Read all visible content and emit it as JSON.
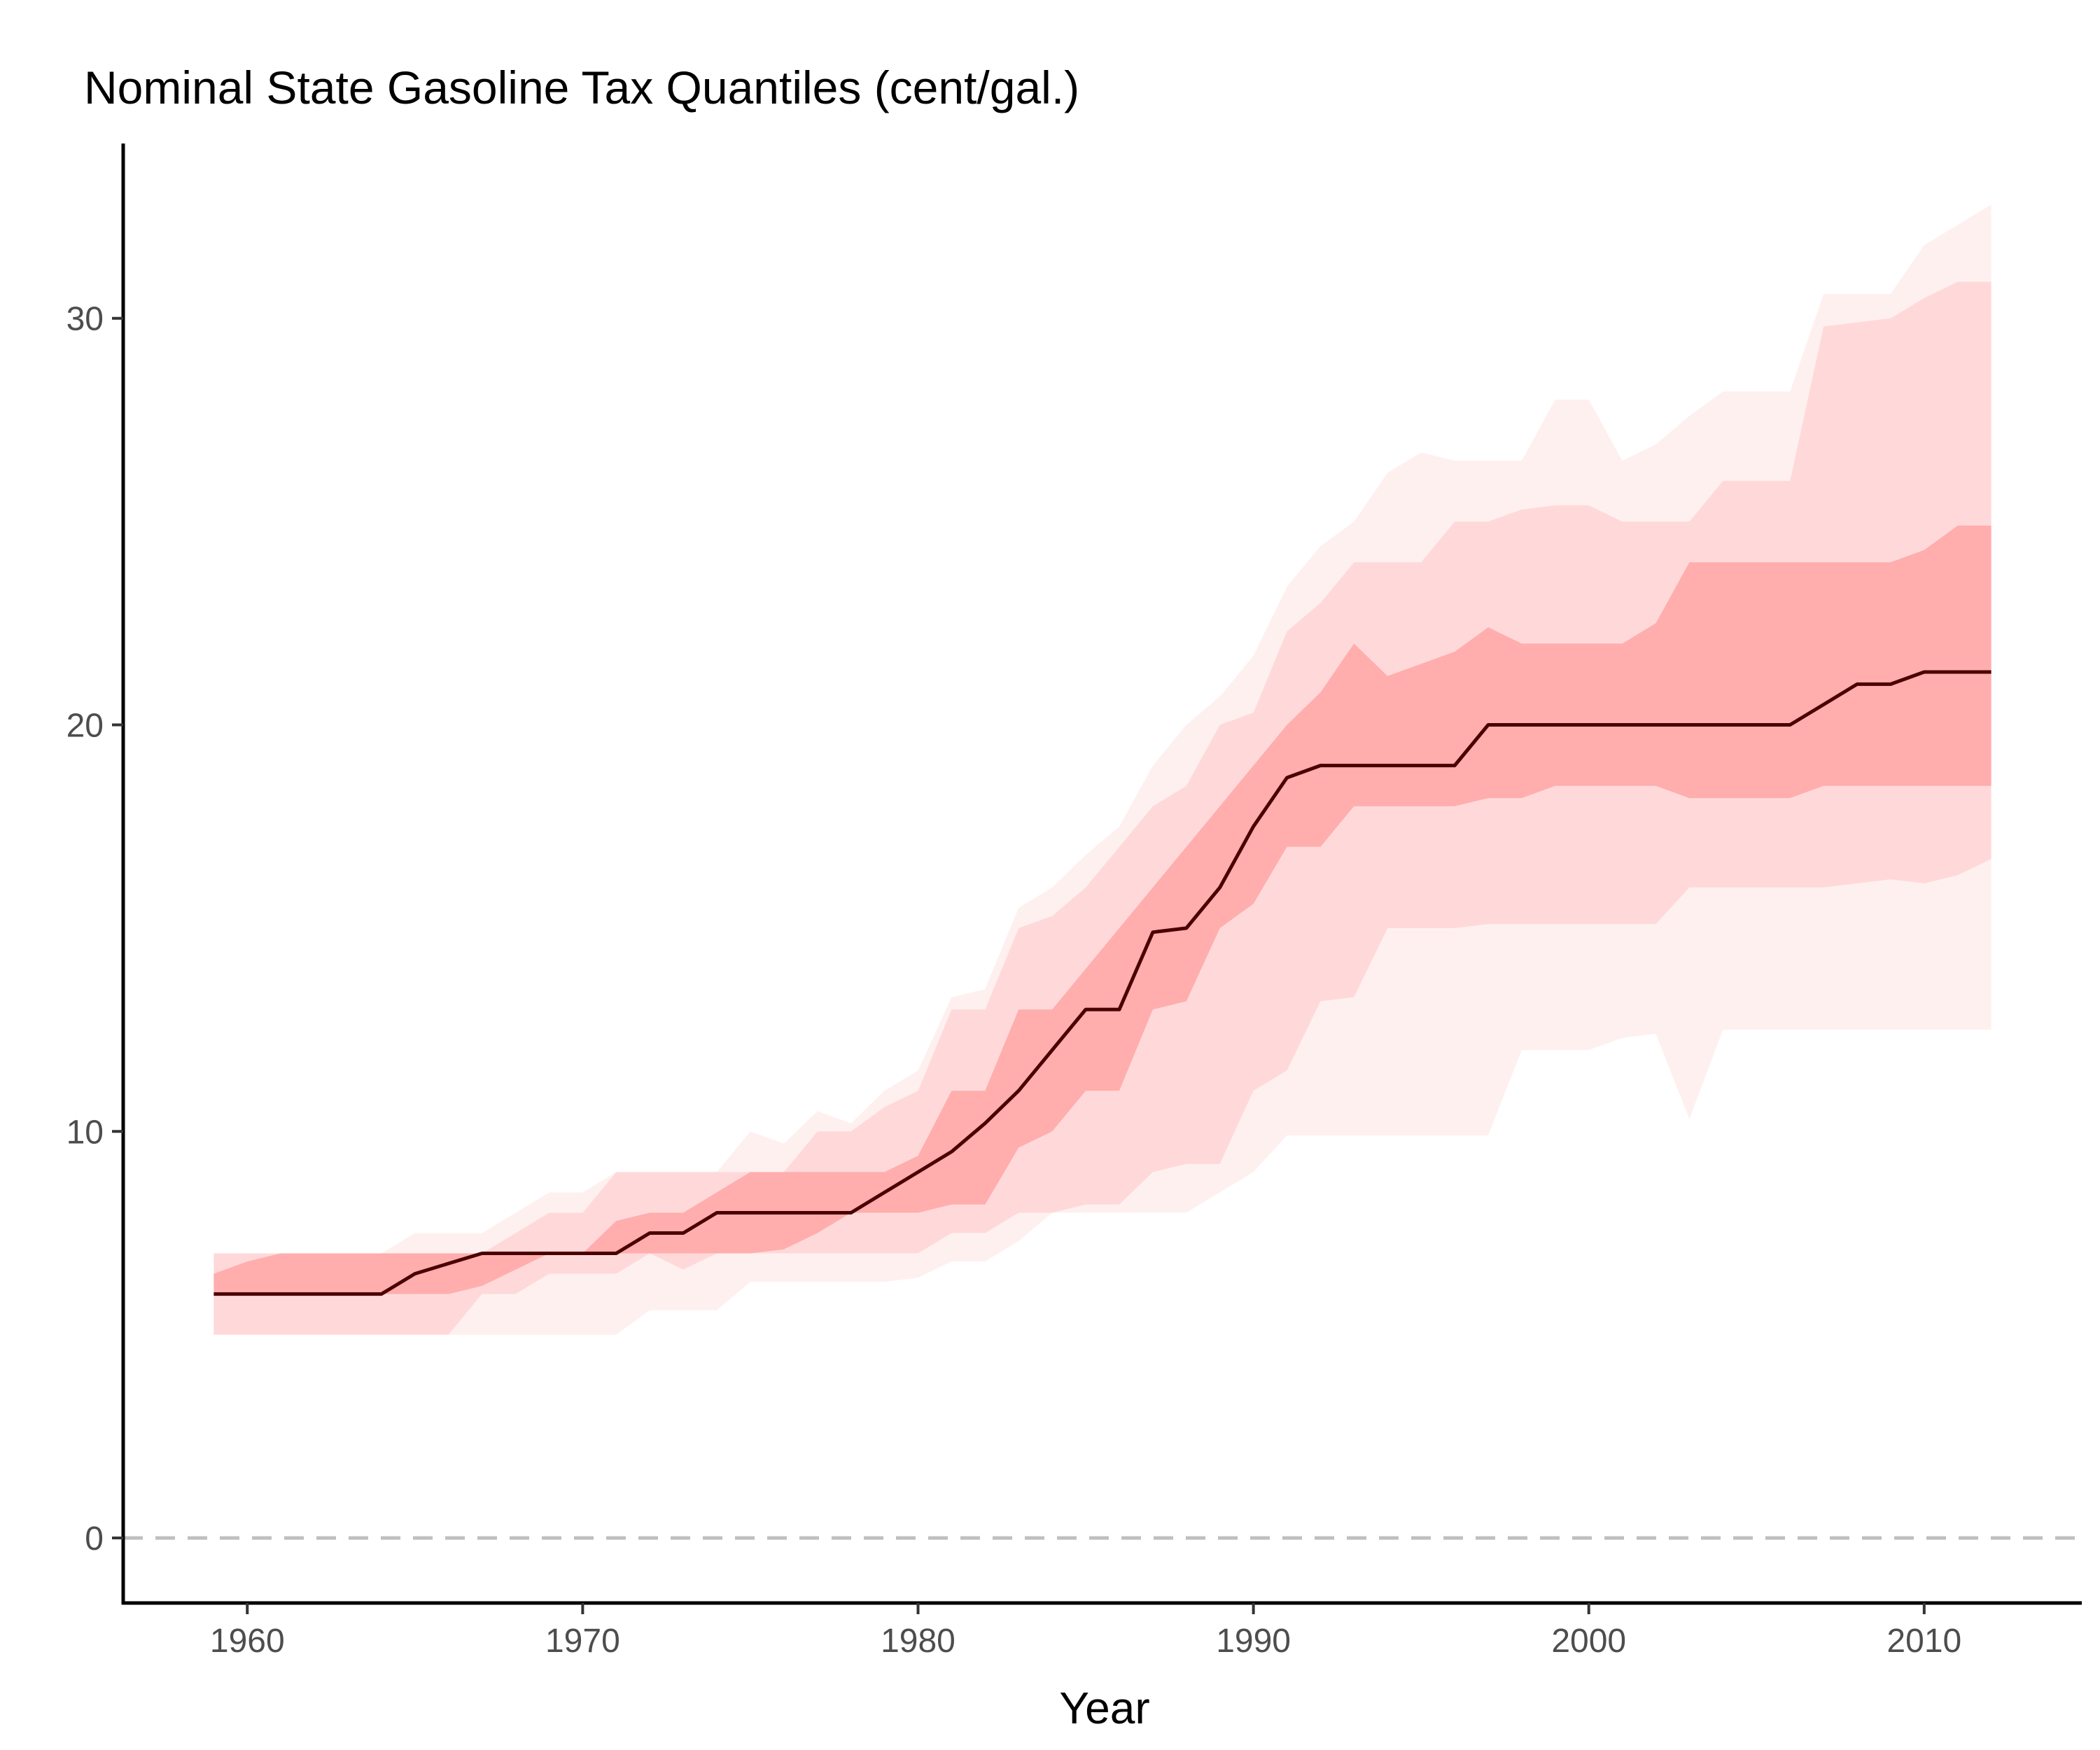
{
  "chart_data": {
    "type": "area",
    "title": "Nominal State Gasoline Tax Quantiles (cent/gal.)",
    "xlabel": "Year",
    "ylabel": "",
    "xlim": [
      1956.3,
      2014.7
    ],
    "ylim": [
      -1.6,
      34.3
    ],
    "x_ticks": [
      1960,
      1970,
      1980,
      1990,
      2000,
      2010
    ],
    "y_ticks": [
      0,
      10,
      20,
      30
    ],
    "grid": false,
    "legend": "none",
    "reference_line": {
      "y": 0,
      "style": "dashed",
      "color": "#bfbfbf"
    },
    "colors": {
      "outer_band": "#fff0f0",
      "middle_band": "#ffd9d9",
      "inner_band": "#ffadad",
      "median_line": "#4a0000"
    },
    "x": [
      1959,
      1960,
      1961,
      1962,
      1963,
      1964,
      1965,
      1966,
      1967,
      1968,
      1969,
      1970,
      1971,
      1972,
      1973,
      1974,
      1975,
      1976,
      1977,
      1978,
      1979,
      1980,
      1981,
      1982,
      1983,
      1984,
      1985,
      1986,
      1987,
      1988,
      1989,
      1990,
      1991,
      1992,
      1993,
      1994,
      1995,
      1996,
      1997,
      1998,
      1999,
      2000,
      2001,
      2002,
      2003,
      2004,
      2005,
      2006,
      2007,
      2008,
      2009,
      2010,
      2011,
      2012
    ],
    "series": [
      {
        "role": "outer_band_upper",
        "values": [
          7,
          7,
          7,
          7,
          7,
          7,
          7.5,
          7.5,
          7.5,
          8,
          8.5,
          8.5,
          9,
          9,
          9,
          9,
          10,
          9.7,
          10.5,
          10.2,
          11,
          11.5,
          13.3,
          13.5,
          15.5,
          16,
          16.8,
          17.5,
          19,
          20,
          20.7,
          21.7,
          23.4,
          24.4,
          25,
          26.2,
          26.7,
          26.5,
          26.5,
          26.5,
          28,
          28,
          26.5,
          26.9,
          27.6,
          28.2,
          28.2,
          28.2,
          30.6,
          30.6,
          30.6,
          31.8,
          32.3,
          32.8
        ]
      },
      {
        "role": "middle_band_upper",
        "values": [
          7,
          7,
          7,
          7,
          7,
          7,
          7,
          7,
          7,
          7.5,
          8,
          8,
          9,
          9,
          9,
          9,
          9,
          9,
          10,
          10,
          10.6,
          11,
          13,
          13,
          15,
          15.3,
          16,
          17,
          18,
          18.5,
          20,
          20.3,
          22.3,
          23,
          24,
          24,
          24,
          25,
          25,
          25.3,
          25.4,
          25.4,
          25,
          25,
          25,
          26,
          26,
          26,
          29.8,
          29.9,
          30,
          30.5,
          30.9,
          30.9
        ]
      },
      {
        "role": "inner_band_upper",
        "values": [
          6.5,
          6.8,
          7,
          7,
          7,
          7,
          7,
          7,
          7,
          7,
          7,
          7,
          7.8,
          8,
          8,
          8.5,
          9,
          9,
          9,
          9,
          9,
          9.4,
          11,
          11,
          13,
          13,
          14,
          15,
          16,
          17,
          18,
          19,
          20,
          20.8,
          22,
          21.2,
          21.5,
          21.8,
          22.4,
          22,
          22,
          22,
          22,
          22.5,
          24,
          24,
          24,
          24,
          24,
          24,
          24,
          24.3,
          24.9,
          24.9
        ]
      },
      {
        "role": "median",
        "values": [
          6,
          6,
          6,
          6,
          6,
          6,
          6.5,
          6.75,
          7,
          7,
          7,
          7,
          7,
          7.5,
          7.5,
          8,
          8,
          8,
          8,
          8,
          8.5,
          9,
          9.5,
          10.2,
          11,
          12,
          13,
          13,
          14.9,
          15,
          16,
          17.5,
          18.7,
          19,
          19,
          19,
          19,
          19,
          20,
          20,
          20,
          20,
          20,
          20,
          20,
          20,
          20,
          20,
          20.5,
          21,
          21,
          21.3,
          21.3,
          21.3
        ]
      },
      {
        "role": "inner_band_lower",
        "values": [
          6,
          6,
          6,
          6,
          6,
          6,
          6,
          6,
          6.2,
          6.6,
          7,
          7,
          7,
          7,
          7,
          7,
          7,
          7.1,
          7.5,
          8,
          8,
          8,
          8.2,
          8.2,
          9.6,
          10,
          11,
          11,
          13,
          13.2,
          15,
          15.6,
          17,
          17,
          18,
          18,
          18,
          18,
          18.2,
          18.2,
          18.5,
          18.5,
          18.5,
          18.5,
          18.2,
          18.2,
          18.2,
          18.2,
          18.5,
          18.5,
          18.5,
          18.5,
          18.5,
          18.5
        ]
      },
      {
        "role": "middle_band_lower",
        "values": [
          5,
          5,
          5,
          5,
          5,
          5,
          5,
          5,
          6,
          6,
          6.5,
          6.5,
          6.5,
          7,
          6.6,
          7,
          7,
          7,
          7,
          7,
          7,
          7,
          7.5,
          7.5,
          8,
          8,
          8.2,
          8.2,
          9,
          9.2,
          9.2,
          11,
          11.5,
          13.2,
          13.3,
          15,
          15,
          15,
          15.1,
          15.1,
          15.1,
          15.1,
          15.1,
          15.1,
          16,
          16,
          16,
          16,
          16,
          16.1,
          16.2,
          16.1,
          16.3,
          16.7
        ]
      },
      {
        "role": "outer_band_lower",
        "values": [
          5,
          5,
          5,
          5,
          5,
          5,
          5,
          5,
          5,
          5,
          5,
          5,
          5,
          5.6,
          5.6,
          5.6,
          6.3,
          6.3,
          6.3,
          6.3,
          6.3,
          6.4,
          6.8,
          6.8,
          7.3,
          8,
          8,
          8,
          8,
          8,
          8.5,
          9,
          9.9,
          9.9,
          9.9,
          9.9,
          9.9,
          9.9,
          9.9,
          12,
          12,
          12,
          12.3,
          12.4,
          10.3,
          12.5,
          12.5,
          12.5,
          12.5,
          12.5,
          12.5,
          12.5,
          12.5,
          12.5
        ]
      }
    ]
  }
}
